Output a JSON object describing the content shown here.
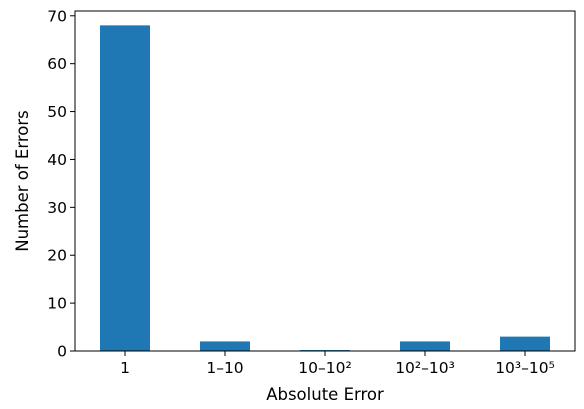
{
  "chart_data": {
    "type": "bar",
    "categories": [
      "1",
      "1–10",
      "10–10²",
      "10²–10³",
      "10³–10⁵"
    ],
    "values": [
      68,
      2,
      0.2,
      2,
      3
    ],
    "title": "",
    "xlabel": "Absolute Error",
    "ylabel": "Number of Errors",
    "ylim": [
      0,
      71
    ],
    "yticks": [
      0,
      10,
      20,
      30,
      40,
      50,
      60,
      70
    ],
    "grid": false,
    "colors": {
      "bar": "#1f77b4",
      "axis": "#000000",
      "background": "#ffffff"
    }
  }
}
